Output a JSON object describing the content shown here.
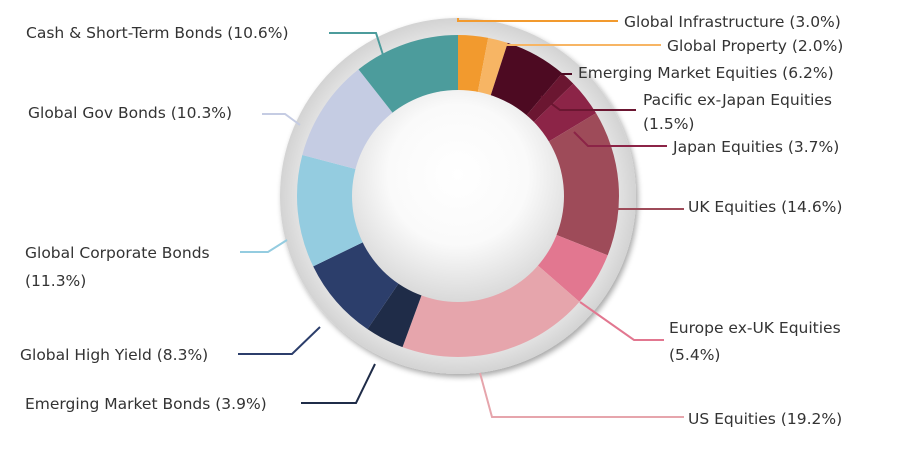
{
  "chart_data": {
    "type": "pie",
    "variant": "donut",
    "title": "",
    "legend": "none",
    "grid": false,
    "start_angle_deg": 0,
    "direction": "clockwise",
    "series": [
      {
        "name": "Global Infrastructure",
        "label": "Global Infrastructure (3.0%)",
        "value": 3.0,
        "color": "#F29A2E"
      },
      {
        "name": "Global Property",
        "label": "Global Property (2.0%)",
        "value": 2.0,
        "color": "#F7B564"
      },
      {
        "name": "Emerging Market Equities",
        "label": "Emerging Market Equities (6.2%)",
        "value": 6.2,
        "color": "#4D0A22"
      },
      {
        "name": "Pacific ex-Japan Equities",
        "label_lines": [
          "Pacific ex-Japan Equities",
          "(1.5%)"
        ],
        "value": 1.5,
        "color": "#6B1631"
      },
      {
        "name": "Japan Equities",
        "label": "Japan Equities (3.7%)",
        "value": 3.7,
        "color": "#8C2447"
      },
      {
        "name": "UK Equities",
        "label": "UK Equities (14.6%)",
        "value": 14.6,
        "color": "#9E4B59"
      },
      {
        "name": "Europe ex-UK Equities",
        "label_lines": [
          "Europe ex-UK Equities",
          "(5.4%)"
        ],
        "value": 5.4,
        "color": "#E27790"
      },
      {
        "name": "US Equities",
        "label": "US Equities (19.2%)",
        "value": 19.2,
        "color": "#E6A5AC"
      },
      {
        "name": "Emerging Market Bonds",
        "label": "Emerging Market Bonds (3.9%)",
        "value": 3.9,
        "color": "#1F2C48"
      },
      {
        "name": "Global High Yield",
        "label": "Global High Yield (8.3%)",
        "value": 8.3,
        "color": "#2C3E6B"
      },
      {
        "name": "Global Corporate Bonds",
        "label_lines": [
          "Global Corporate Bonds",
          "(11.3%)"
        ],
        "value": 11.3,
        "color": "#94CCE0"
      },
      {
        "name": "Global Gov Bonds",
        "label": "Global Gov Bonds (10.3%)",
        "value": 10.3,
        "color": "#C5CCE3"
      },
      {
        "name": "Cash & Short-Term Bonds",
        "label": "Cash & Short-Term Bonds (10.6%)",
        "value": 10.6,
        "color": "#4C9C9C"
      }
    ]
  }
}
